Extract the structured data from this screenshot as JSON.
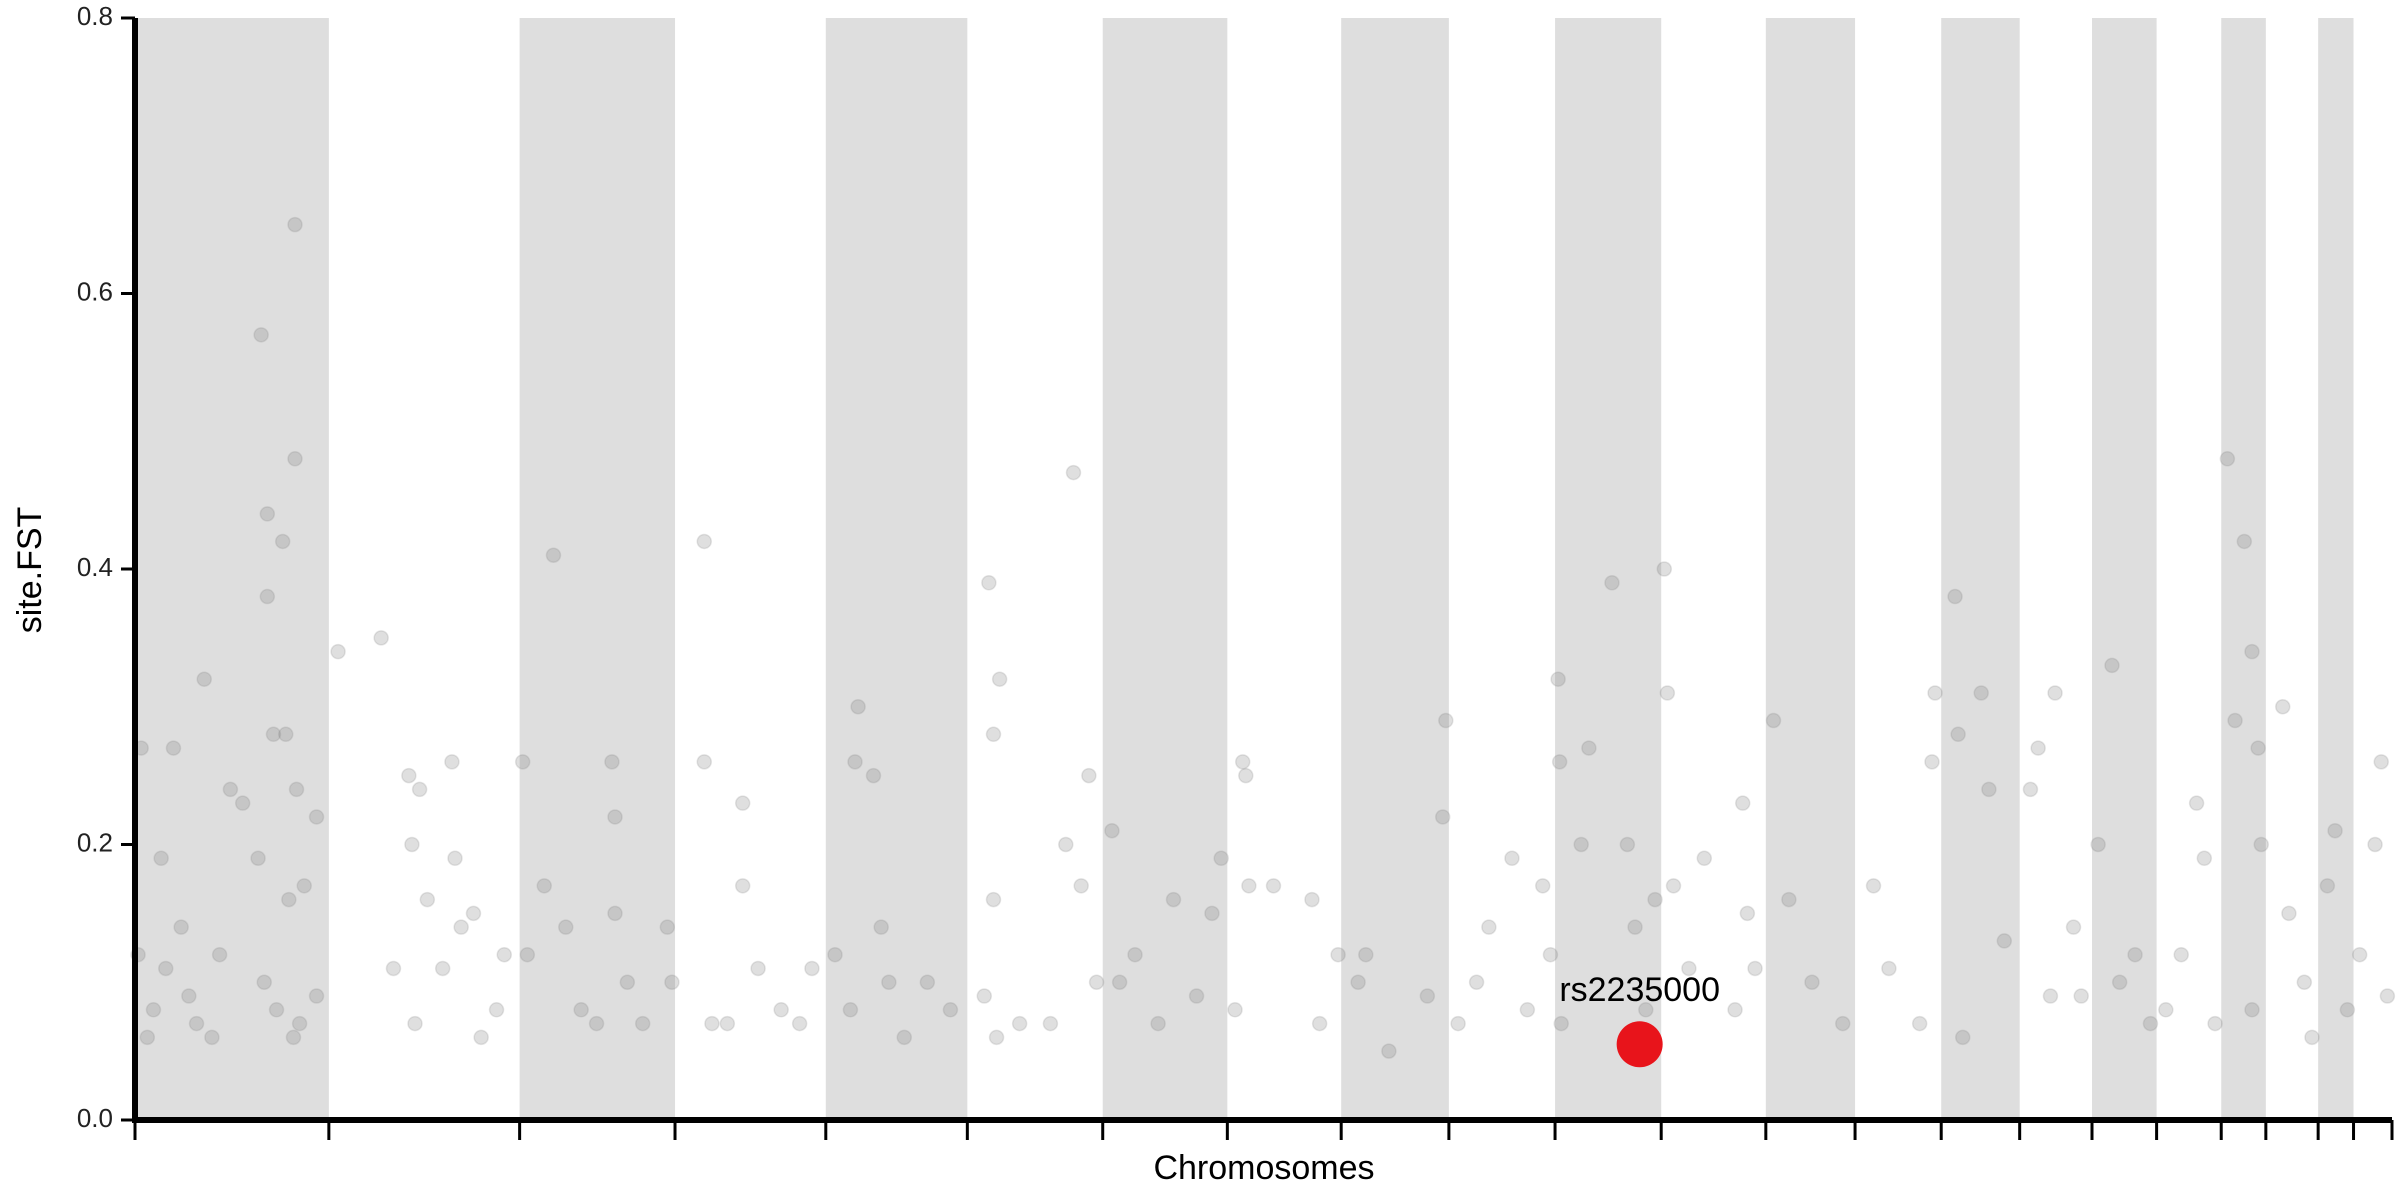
{
  "chart_data": {
    "type": "scatter",
    "x_label": "Chromosomes",
    "y_label": "site.FST",
    "xlim": [
      0,
      1467
    ],
    "xticks": [
      0,
      126,
      250,
      351,
      449,
      541,
      629,
      710,
      784,
      854,
      923,
      992,
      1060,
      1118,
      1174,
      1225,
      1272,
      1314,
      1356,
      1385,
      1419,
      1442,
      1467
    ],
    "ylim": [
      0,
      0.8
    ],
    "yticks": [
      {
        "value": 0,
        "label": "0.0"
      },
      0.2,
      0.4,
      0.6,
      0.8
    ],
    "band_color": "#dedede",
    "color": "#808080",
    "x": [
      2,
      4,
      8,
      12,
      17,
      20,
      25,
      30,
      35,
      40,
      45,
      50,
      55,
      62,
      70,
      80,
      82,
      84,
      86,
      86,
      90,
      92,
      96,
      98,
      100,
      103,
      104,
      104,
      105,
      107,
      110,
      118,
      118,
      132,
      160,
      168,
      178,
      180,
      182,
      185,
      190,
      200,
      206,
      208,
      212,
      220,
      225,
      235,
      240,
      252,
      255,
      266,
      272,
      280,
      290,
      300,
      310,
      312,
      312,
      320,
      330,
      346,
      349,
      370,
      370,
      375,
      385,
      395,
      395,
      405,
      420,
      432,
      440,
      455,
      465,
      468,
      470,
      480,
      485,
      490,
      500,
      515,
      530,
      552,
      555,
      558,
      558,
      560,
      562,
      575,
      595,
      605,
      610,
      615,
      620,
      625,
      635,
      640,
      650,
      665,
      675,
      690,
      700,
      706,
      715,
      720,
      722,
      724,
      740,
      765,
      770,
      782,
      795,
      800,
      815,
      840,
      850,
      852,
      860,
      872,
      880,
      895,
      905,
      915,
      920,
      925,
      926,
      927,
      940,
      945,
      960,
      970,
      975,
      982,
      988,
      994,
      996,
      1000,
      1010,
      1020,
      1040,
      1045,
      1048,
      1053,
      1065,
      1075,
      1090,
      1110,
      1130,
      1140,
      1160,
      1168,
      1170,
      1183,
      1185,
      1188,
      1200,
      1205,
      1215,
      1232,
      1237,
      1245,
      1248,
      1260,
      1265,
      1276,
      1285,
      1290,
      1300,
      1310,
      1320,
      1330,
      1340,
      1345,
      1352,
      1360,
      1365,
      1371,
      1376,
      1380,
      1382,
      1376,
      1396,
      1400,
      1410,
      1415,
      1425,
      1430,
      1438,
      1446,
      1456,
      1460,
      1464
    ],
    "values": [
      0.12,
      0.27,
      0.06,
      0.08,
      0.19,
      0.11,
      0.27,
      0.14,
      0.09,
      0.07,
      0.32,
      0.06,
      0.12,
      0.24,
      0.23,
      0.19,
      0.57,
      0.1,
      0.38,
      0.44,
      0.28,
      0.08,
      0.42,
      0.28,
      0.16,
      0.06,
      0.65,
      0.48,
      0.24,
      0.07,
      0.17,
      0.22,
      0.09,
      0.34,
      0.35,
      0.11,
      0.25,
      0.2,
      0.07,
      0.24,
      0.16,
      0.11,
      0.26,
      0.19,
      0.14,
      0.15,
      0.06,
      0.08,
      0.12,
      0.26,
      0.12,
      0.17,
      0.41,
      0.14,
      0.08,
      0.07,
      0.26,
      0.22,
      0.15,
      0.1,
      0.07,
      0.14,
      0.1,
      0.42,
      0.26,
      0.07,
      0.07,
      0.23,
      0.17,
      0.11,
      0.08,
      0.07,
      0.11,
      0.12,
      0.08,
      0.26,
      0.3,
      0.25,
      0.14,
      0.1,
      0.06,
      0.1,
      0.08,
      0.09,
      0.39,
      0.16,
      0.28,
      0.06,
      0.32,
      0.07,
      0.07,
      0.2,
      0.47,
      0.17,
      0.25,
      0.1,
      0.21,
      0.1,
      0.12,
      0.07,
      0.16,
      0.09,
      0.15,
      0.19,
      0.08,
      0.26,
      0.25,
      0.17,
      0.17,
      0.16,
      0.07,
      0.12,
      0.1,
      0.12,
      0.05,
      0.09,
      0.22,
      0.29,
      0.07,
      0.1,
      0.14,
      0.19,
      0.08,
      0.17,
      0.12,
      0.32,
      0.26,
      0.07,
      0.2,
      0.27,
      0.39,
      0.2,
      0.14,
      0.08,
      0.16,
      0.4,
      0.31,
      0.17,
      0.11,
      0.19,
      0.08,
      0.23,
      0.15,
      0.11,
      0.29,
      0.16,
      0.1,
      0.07,
      0.17,
      0.11,
      0.07,
      0.26,
      0.31,
      0.38,
      0.28,
      0.06,
      0.31,
      0.24,
      0.13,
      0.24,
      0.27,
      0.09,
      0.31,
      0.14,
      0.09,
      0.2,
      0.33,
      0.1,
      0.12,
      0.07,
      0.08,
      0.12,
      0.23,
      0.19,
      0.07,
      0.48,
      0.29,
      0.42,
      0.34,
      0.27,
      0.2,
      0.08,
      0.3,
      0.15,
      0.1,
      0.06,
      0.17,
      0.21,
      0.08,
      0.12,
      0.2,
      0.26,
      0.09
    ],
    "highlight": {
      "label": "rs2235000",
      "x": 978,
      "value": 0.055,
      "color": "#e8141b"
    }
  }
}
